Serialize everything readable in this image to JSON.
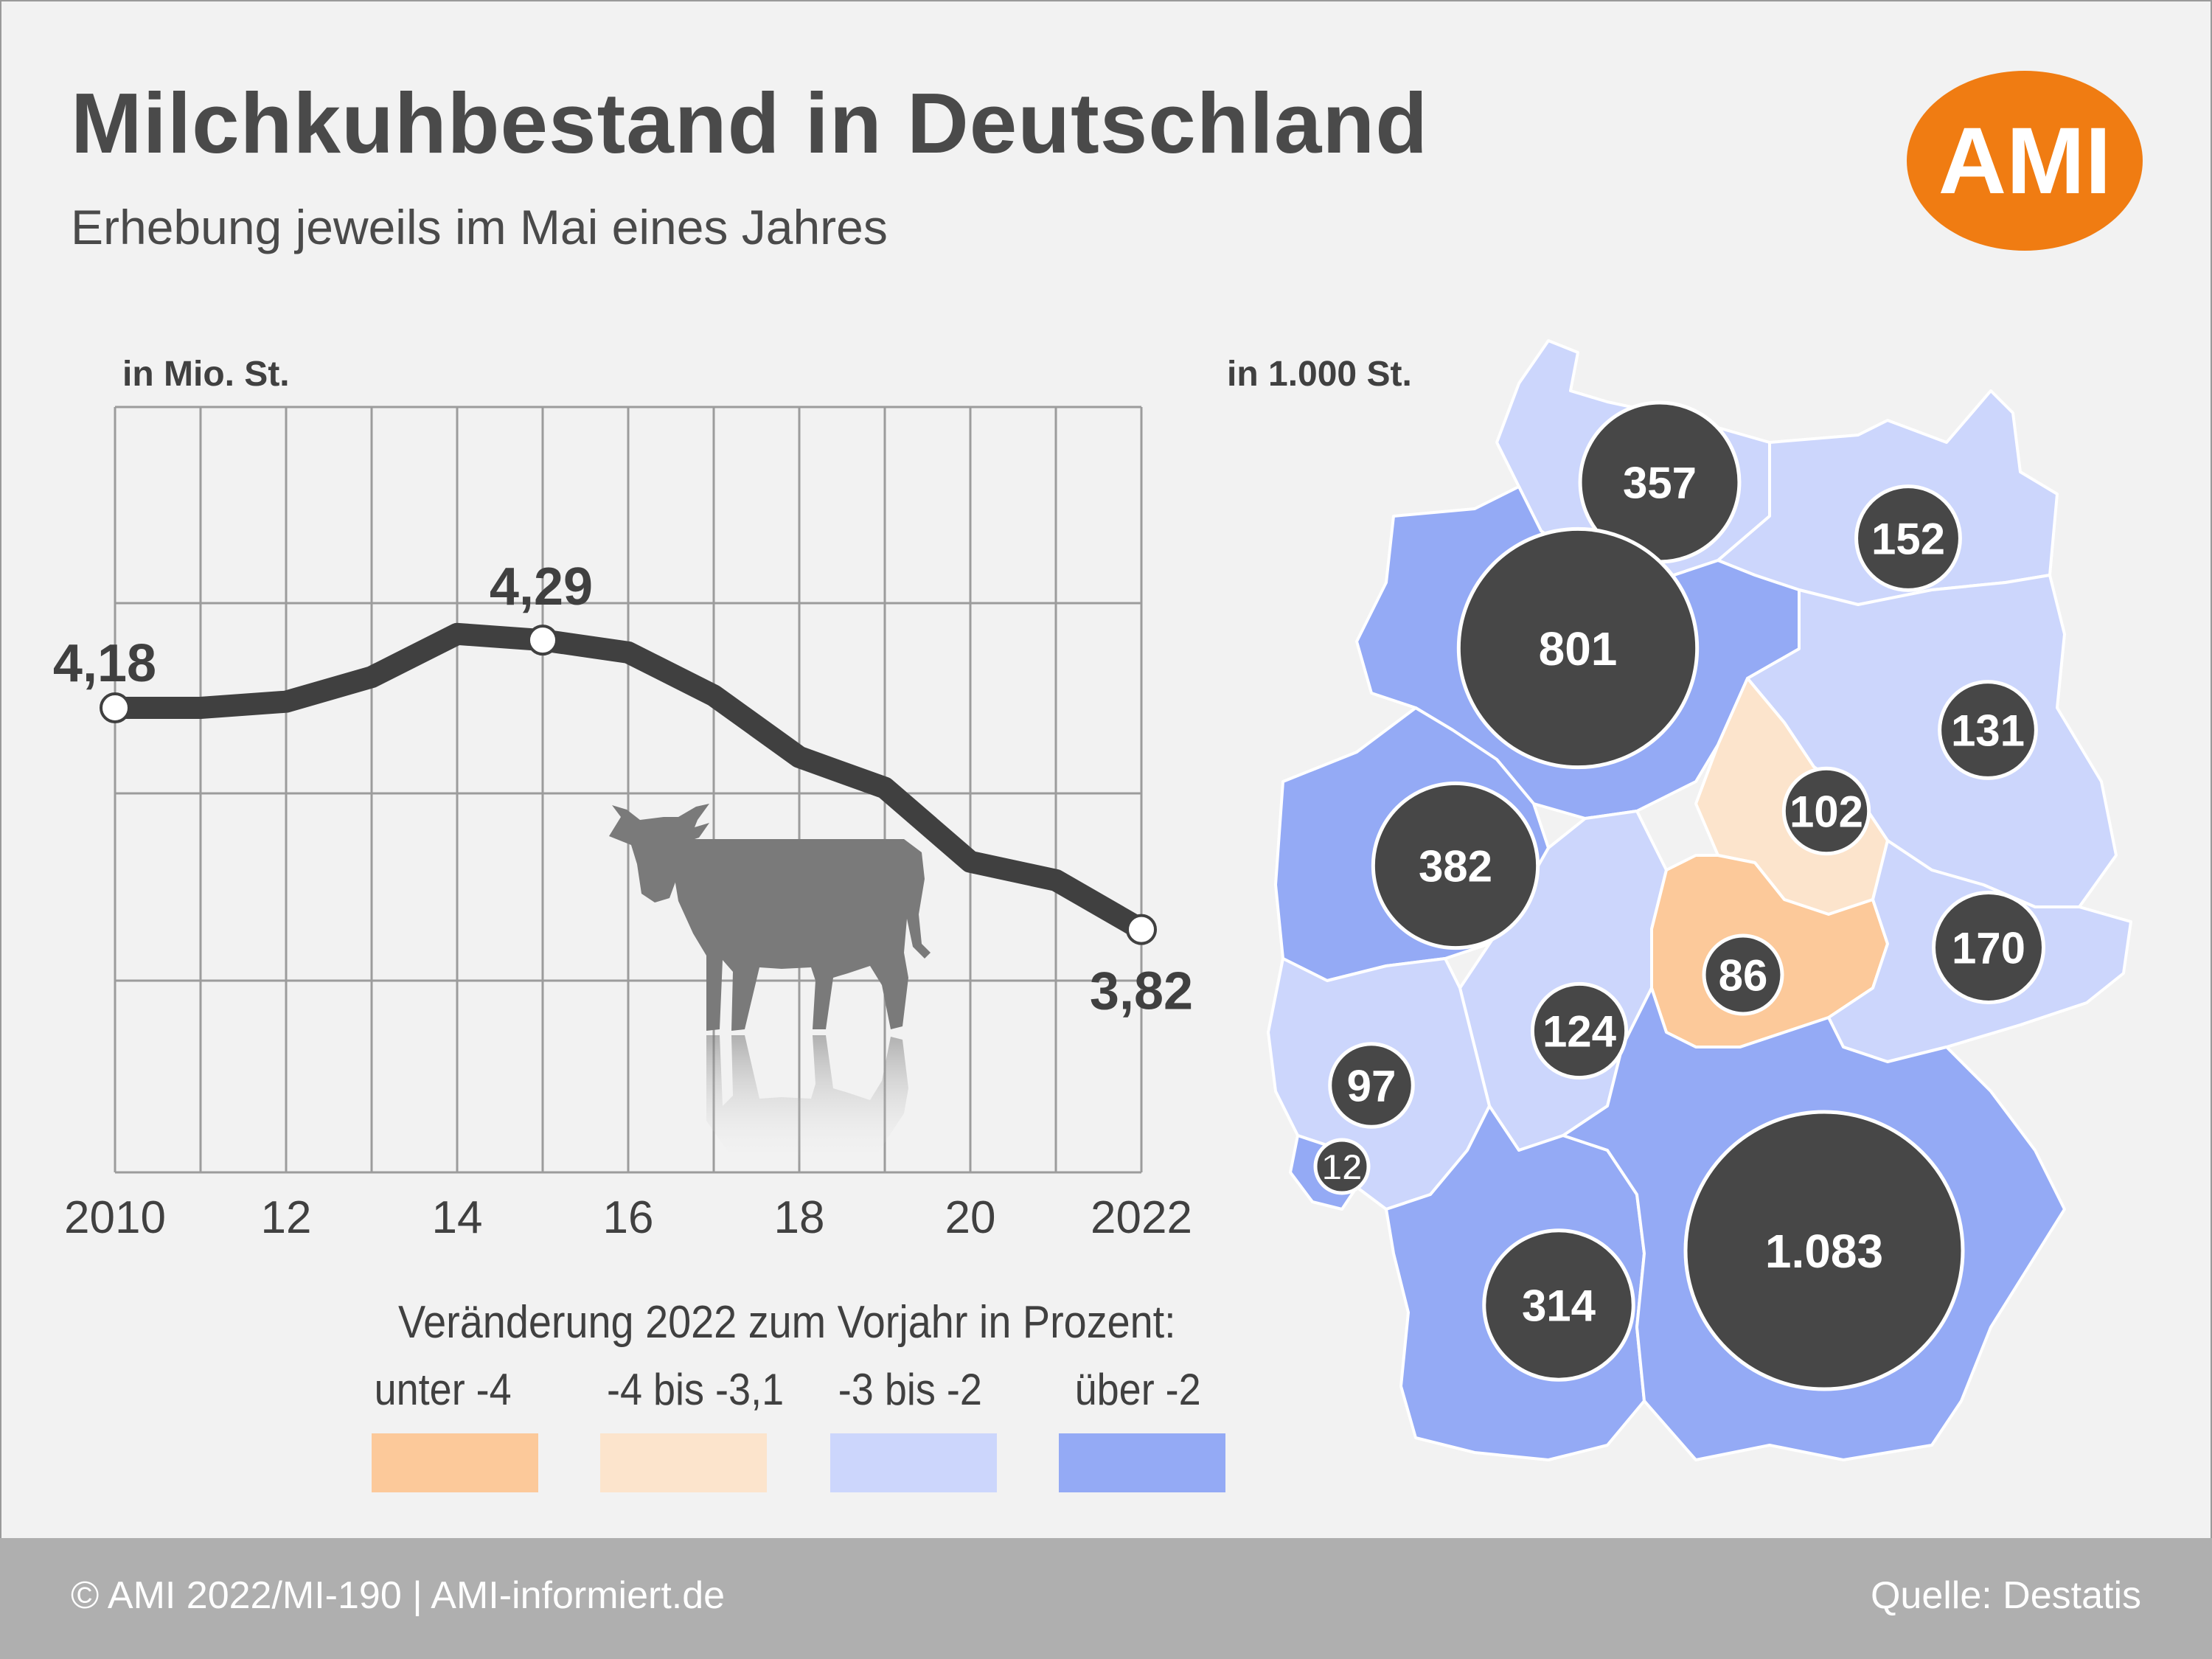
{
  "header": {
    "title": "Milchkuhbestand in Deutschland",
    "subtitle": "Erhebung jeweils im Mai eines Jahres",
    "logo_text": "AMI"
  },
  "chart_data": [
    {
      "type": "line",
      "ylabel": "in Mio. St.",
      "x": [
        2010,
        2011,
        2012,
        2013,
        2014,
        2015,
        2016,
        2017,
        2018,
        2019,
        2020,
        2021,
        2022
      ],
      "x_tick_labels": [
        "2010",
        "12",
        "14",
        "16",
        "18",
        "20",
        "2022"
      ],
      "series": [
        {
          "values": [
            4.18,
            4.18,
            4.19,
            4.23,
            4.3,
            4.29,
            4.27,
            4.2,
            4.1,
            4.05,
            3.93,
            3.9,
            3.82
          ]
        }
      ],
      "data_labels": [
        {
          "x": 2010,
          "text": "4,18"
        },
        {
          "x": 2015,
          "text": "4,29"
        },
        {
          "x": 2022,
          "text": "3,82"
        }
      ],
      "grid": true,
      "color": "#404040"
    },
    {
      "type": "map",
      "unit_label": "in 1.000 St.",
      "bubbles": [
        {
          "label": "357",
          "value": 357
        },
        {
          "label": "801",
          "value": 801
        },
        {
          "label": "152",
          "value": 152
        },
        {
          "label": "131",
          "value": 131
        },
        {
          "label": "102",
          "value": 102
        },
        {
          "label": "382",
          "value": 382
        },
        {
          "label": "86",
          "value": 86
        },
        {
          "label": "170",
          "value": 170
        },
        {
          "label": "124",
          "value": 124
        },
        {
          "label": "97",
          "value": 97
        },
        {
          "label": "12",
          "value": 12
        },
        {
          "label": "314",
          "value": 314
        },
        {
          "label": "1.083",
          "value": 1083
        }
      ],
      "bubble_color": "#474747"
    }
  ],
  "legend": {
    "title": "Veränderung 2022 zum Vorjahr in Prozent:",
    "items": [
      {
        "label": "unter -4",
        "color": "#fcc99a"
      },
      {
        "label": "-4 bis -3,1",
        "color": "#fce4cc"
      },
      {
        "label": "-3 bis -2",
        "color": "#ccd6fc"
      },
      {
        "label": "über -2",
        "color": "#94aaf5"
      }
    ]
  },
  "footer": {
    "copyright": "© AMI 2022/MI-190 | AMI-informiert.de",
    "source": "Quelle: Destatis"
  }
}
